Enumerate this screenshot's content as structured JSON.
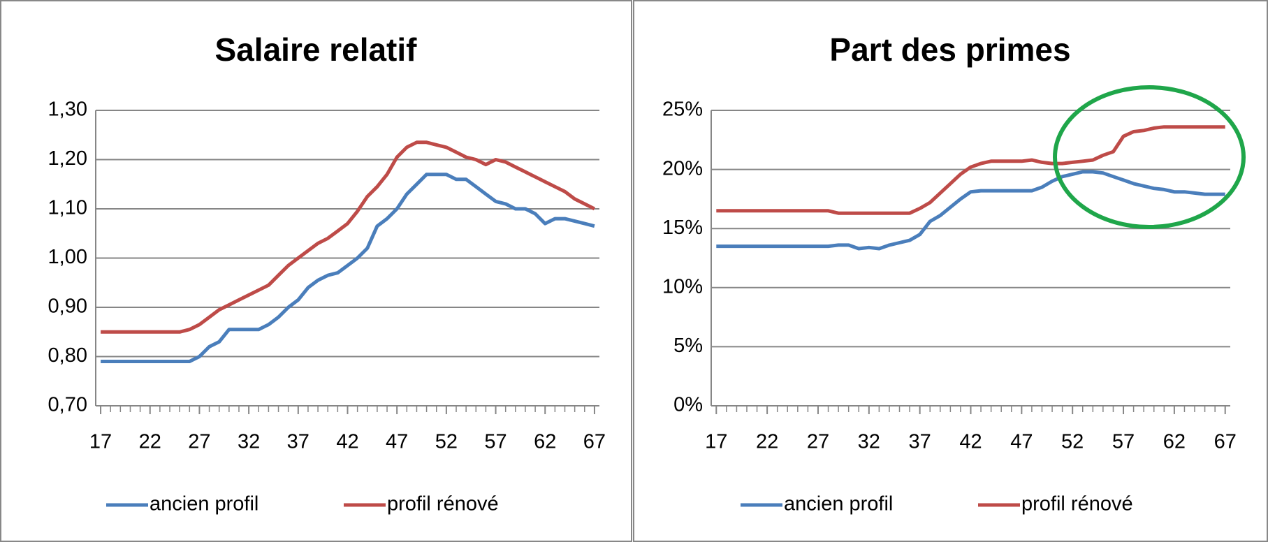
{
  "chart_data": [
    {
      "type": "line",
      "title": "Salaire relatif",
      "x": [
        17,
        18,
        19,
        20,
        21,
        22,
        23,
        24,
        25,
        26,
        27,
        28,
        29,
        30,
        31,
        32,
        33,
        34,
        35,
        36,
        37,
        38,
        39,
        40,
        41,
        42,
        43,
        44,
        45,
        46,
        47,
        48,
        49,
        50,
        51,
        52,
        53,
        54,
        55,
        56,
        57,
        58,
        59,
        60,
        61,
        62,
        63,
        64,
        65,
        66,
        67
      ],
      "series": [
        {
          "name": "ancien profil",
          "color": "#4a7ebb",
          "values": [
            0.79,
            0.79,
            0.79,
            0.79,
            0.79,
            0.79,
            0.79,
            0.79,
            0.79,
            0.79,
            0.8,
            0.82,
            0.83,
            0.855,
            0.855,
            0.855,
            0.855,
            0.865,
            0.88,
            0.9,
            0.915,
            0.94,
            0.955,
            0.965,
            0.97,
            0.985,
            1.0,
            1.02,
            1.065,
            1.08,
            1.1,
            1.13,
            1.15,
            1.17,
            1.17,
            1.17,
            1.16,
            1.16,
            1.145,
            1.13,
            1.115,
            1.11,
            1.1,
            1.1,
            1.09,
            1.07,
            1.08,
            1.08,
            1.075,
            1.07,
            1.065
          ]
        },
        {
          "name": "profil rénové",
          "color": "#be4b48",
          "values": [
            0.85,
            0.85,
            0.85,
            0.85,
            0.85,
            0.85,
            0.85,
            0.85,
            0.85,
            0.855,
            0.865,
            0.88,
            0.895,
            0.905,
            0.915,
            0.925,
            0.935,
            0.945,
            0.965,
            0.985,
            1.0,
            1.015,
            1.03,
            1.04,
            1.055,
            1.07,
            1.095,
            1.125,
            1.145,
            1.17,
            1.205,
            1.225,
            1.235,
            1.235,
            1.23,
            1.225,
            1.215,
            1.205,
            1.2,
            1.19,
            1.2,
            1.195,
            1.185,
            1.175,
            1.165,
            1.155,
            1.145,
            1.135,
            1.12,
            1.11,
            1.1
          ]
        }
      ],
      "xlim": [
        16.5,
        67.5
      ],
      "xticks": [
        17,
        22,
        27,
        32,
        37,
        42,
        47,
        52,
        57,
        62,
        67
      ],
      "ylim": [
        0.7,
        1.3
      ],
      "yticks": [
        {
          "value": 0.7,
          "label": "0,70"
        },
        {
          "value": 0.8,
          "label": "0,80"
        },
        {
          "value": 0.9,
          "label": "0,90"
        },
        {
          "value": 1.0,
          "label": "1,00"
        },
        {
          "value": 1.1,
          "label": "1,10"
        },
        {
          "value": 1.2,
          "label": "1,20"
        },
        {
          "value": 1.3,
          "label": "1,30"
        }
      ],
      "grid": true,
      "legend": "bottom"
    },
    {
      "type": "line",
      "title": "Part des primes",
      "x": [
        17,
        18,
        19,
        20,
        21,
        22,
        23,
        24,
        25,
        26,
        27,
        28,
        29,
        30,
        31,
        32,
        33,
        34,
        35,
        36,
        37,
        38,
        39,
        40,
        41,
        42,
        43,
        44,
        45,
        46,
        47,
        48,
        49,
        50,
        51,
        52,
        53,
        54,
        55,
        56,
        57,
        58,
        59,
        60,
        61,
        62,
        63,
        64,
        65,
        66,
        67
      ],
      "series": [
        {
          "name": "ancien profil",
          "color": "#4a7ebb",
          "values": [
            13.5,
            13.5,
            13.5,
            13.5,
            13.5,
            13.5,
            13.5,
            13.5,
            13.5,
            13.5,
            13.5,
            13.5,
            13.6,
            13.6,
            13.3,
            13.4,
            13.3,
            13.6,
            13.8,
            14.0,
            14.5,
            15.6,
            16.1,
            16.8,
            17.5,
            18.1,
            18.2,
            18.2,
            18.2,
            18.2,
            18.2,
            18.2,
            18.5,
            19.0,
            19.4,
            19.6,
            19.8,
            19.8,
            19.7,
            19.4,
            19.1,
            18.8,
            18.6,
            18.4,
            18.3,
            18.1,
            18.1,
            18.0,
            17.9,
            17.9,
            17.9
          ]
        },
        {
          "name": "profil rénové",
          "color": "#be4b48",
          "values": [
            16.5,
            16.5,
            16.5,
            16.5,
            16.5,
            16.5,
            16.5,
            16.5,
            16.5,
            16.5,
            16.5,
            16.5,
            16.3,
            16.3,
            16.3,
            16.3,
            16.3,
            16.3,
            16.3,
            16.3,
            16.7,
            17.2,
            18.0,
            18.8,
            19.6,
            20.2,
            20.5,
            20.7,
            20.7,
            20.7,
            20.7,
            20.8,
            20.6,
            20.5,
            20.5,
            20.6,
            20.7,
            20.8,
            21.2,
            21.5,
            22.8,
            23.2,
            23.3,
            23.5,
            23.6,
            23.6,
            23.6,
            23.6,
            23.6,
            23.6,
            23.6
          ]
        }
      ],
      "xlim": [
        16.5,
        67.5
      ],
      "xticks": [
        17,
        22,
        27,
        32,
        37,
        42,
        47,
        52,
        57,
        62,
        67
      ],
      "ylim": [
        0,
        25
      ],
      "yticks": [
        {
          "value": 0,
          "label": "0%"
        },
        {
          "value": 5,
          "label": "5%"
        },
        {
          "value": 10,
          "label": "10%"
        },
        {
          "value": 15,
          "label": "15%"
        },
        {
          "value": 20,
          "label": "20%"
        },
        {
          "value": 25,
          "label": "25%"
        }
      ],
      "grid": true,
      "legend": "bottom"
    }
  ]
}
